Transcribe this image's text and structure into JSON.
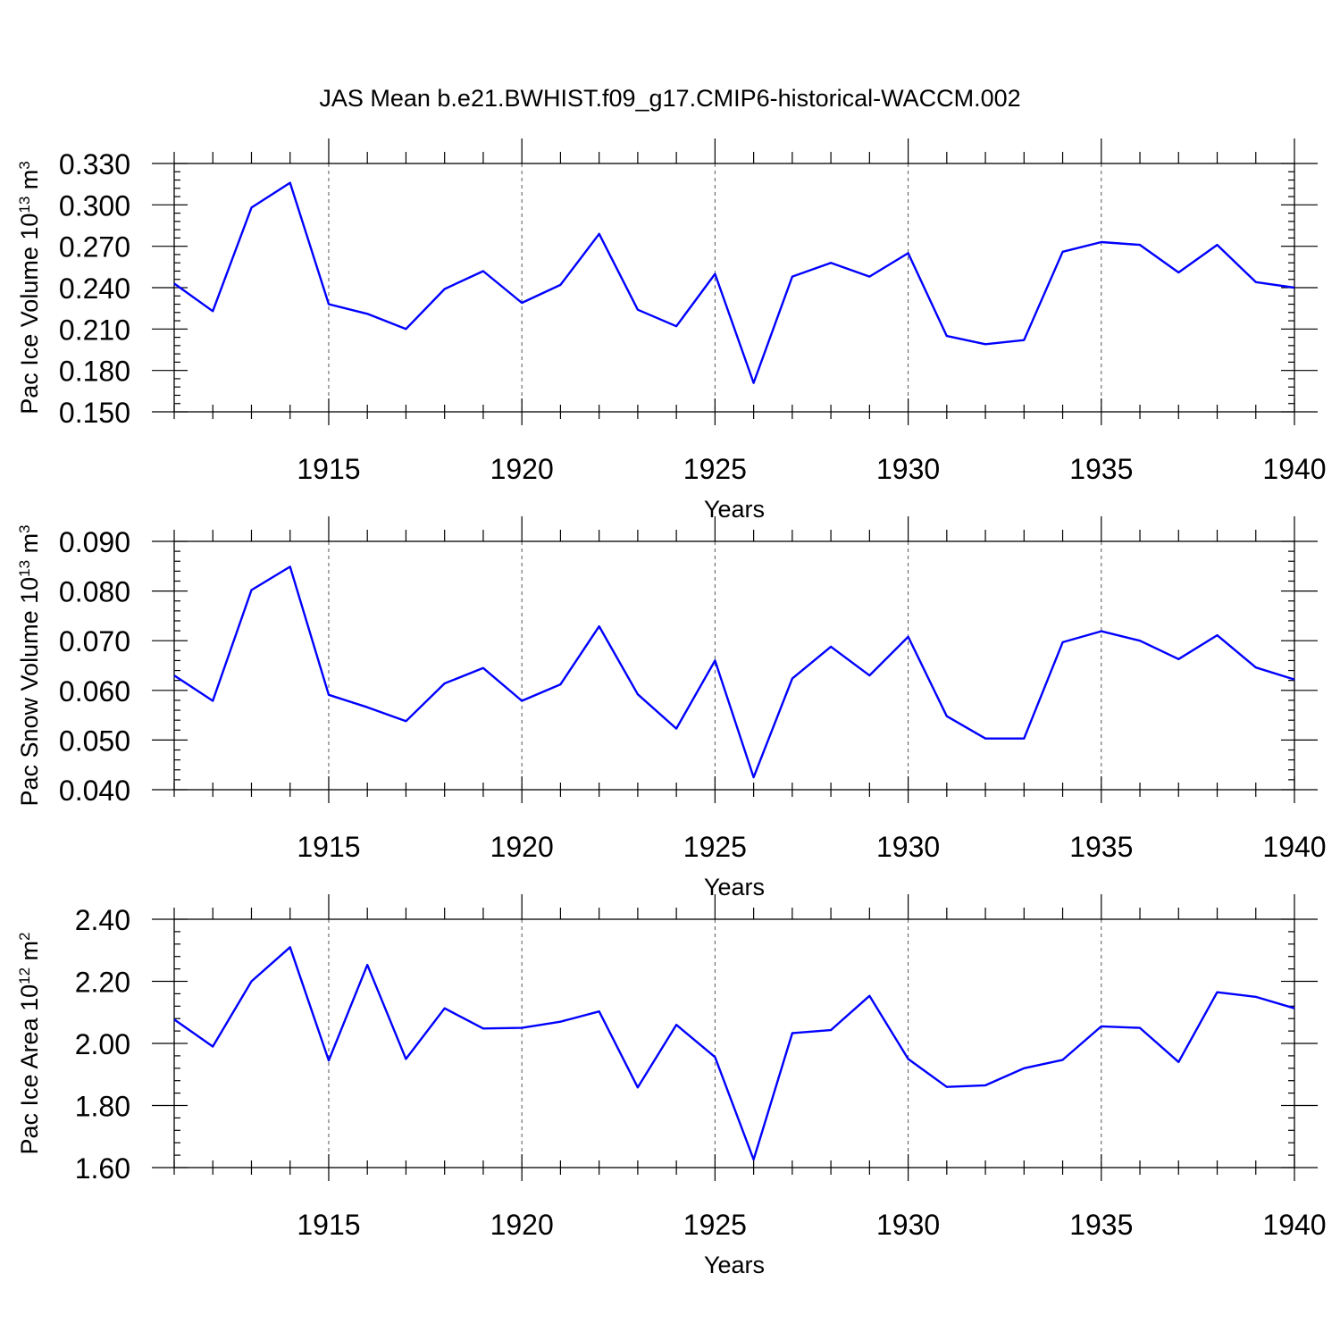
{
  "title": "JAS Mean b.e21.BWHIST.f09_g17.CMIP6-historical-WACCM.002",
  "line_color": "#0000ff",
  "chart_data": [
    {
      "type": "line",
      "ylabel": "Pac Ice Volume 10",
      "ylabel_exp": "13",
      "ylabel_unit": " m",
      "ylabel_unit_exp": "3",
      "xlabel": "Years",
      "xlim": [
        1911,
        1940
      ],
      "ylim": [
        0.15,
        0.33
      ],
      "yticks": [
        "0.150",
        "0.180",
        "0.210",
        "0.240",
        "0.270",
        "0.300",
        "0.330"
      ],
      "xticks": [
        "1915",
        "1920",
        "1925",
        "1930",
        "1935",
        "1940"
      ],
      "grid": "dashed vertical lines at major year ticks",
      "x": [
        1911,
        1912,
        1913,
        1914,
        1915,
        1916,
        1917,
        1918,
        1919,
        1920,
        1921,
        1922,
        1923,
        1924,
        1925,
        1926,
        1927,
        1928,
        1929,
        1930,
        1931,
        1932,
        1933,
        1934,
        1935,
        1936,
        1937,
        1938,
        1939,
        1940
      ],
      "values": [
        0.243,
        0.223,
        0.298,
        0.316,
        0.228,
        0.221,
        0.21,
        0.239,
        0.252,
        0.229,
        0.242,
        0.279,
        0.224,
        0.212,
        0.25,
        0.171,
        0.248,
        0.258,
        0.248,
        0.265,
        0.205,
        0.199,
        0.202,
        0.266,
        0.273,
        0.271,
        0.251,
        0.271,
        0.244,
        0.24
      ]
    },
    {
      "type": "line",
      "ylabel": "Pac Snow Volume 10",
      "ylabel_exp": "13",
      "ylabel_unit": " m",
      "ylabel_unit_exp": "3",
      "xlabel": "Years",
      "xlim": [
        1911,
        1940
      ],
      "ylim": [
        0.04,
        0.09
      ],
      "yticks": [
        "0.040",
        "0.050",
        "0.060",
        "0.070",
        "0.080",
        "0.090"
      ],
      "xticks": [
        "1915",
        "1920",
        "1925",
        "1930",
        "1935",
        "1940"
      ],
      "grid": "dashed vertical lines at major year ticks",
      "x": [
        1911,
        1912,
        1913,
        1914,
        1915,
        1916,
        1917,
        1918,
        1919,
        1920,
        1921,
        1922,
        1923,
        1924,
        1925,
        1926,
        1927,
        1928,
        1929,
        1930,
        1931,
        1932,
        1933,
        1934,
        1935,
        1936,
        1937,
        1938,
        1939,
        1940
      ],
      "values": [
        0.063,
        0.0579,
        0.0802,
        0.0849,
        0.0591,
        0.0566,
        0.0538,
        0.0614,
        0.0645,
        0.0579,
        0.0612,
        0.0729,
        0.0592,
        0.0523,
        0.066,
        0.0425,
        0.0624,
        0.0688,
        0.063,
        0.0708,
        0.0548,
        0.0503,
        0.0503,
        0.0697,
        0.0719,
        0.07,
        0.0663,
        0.0711,
        0.0646,
        0.0622
      ]
    },
    {
      "type": "line",
      "ylabel": "Pac Ice Area 10",
      "ylabel_exp": "12",
      "ylabel_unit": " m",
      "ylabel_unit_exp": "2",
      "xlabel": "Years",
      "xlim": [
        1911,
        1940
      ],
      "ylim": [
        1.6,
        2.4
      ],
      "yticks": [
        "1.60",
        "1.80",
        "2.00",
        "2.20",
        "2.40"
      ],
      "xticks": [
        "1915",
        "1920",
        "1925",
        "1930",
        "1935",
        "1940"
      ],
      "grid": "dashed vertical lines at major year ticks",
      "x": [
        1911,
        1912,
        1913,
        1914,
        1915,
        1916,
        1917,
        1918,
        1919,
        1920,
        1921,
        1922,
        1923,
        1924,
        1925,
        1926,
        1927,
        1928,
        1929,
        1930,
        1931,
        1932,
        1933,
        1934,
        1935,
        1936,
        1937,
        1938,
        1939,
        1940
      ],
      "values": [
        2.077,
        1.99,
        2.2,
        2.31,
        1.945,
        2.253,
        1.95,
        2.113,
        2.048,
        2.05,
        2.07,
        2.103,
        1.858,
        2.06,
        1.956,
        1.626,
        2.033,
        2.043,
        2.153,
        1.95,
        1.86,
        1.865,
        1.92,
        1.947,
        2.055,
        2.05,
        1.94,
        2.165,
        2.15,
        2.113
      ]
    }
  ]
}
